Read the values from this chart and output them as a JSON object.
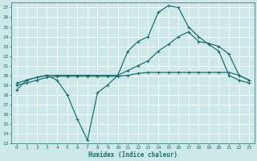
{
  "xlabel": "Humidex (Indice chaleur)",
  "background_color": "#cde8e8",
  "grid_color": "#ffffff",
  "line_color": "#1a7070",
  "xlim": [
    -0.5,
    23.5
  ],
  "ylim": [
    13,
    27.5
  ],
  "xticks": [
    0,
    1,
    2,
    3,
    4,
    5,
    6,
    7,
    8,
    9,
    10,
    11,
    12,
    13,
    14,
    15,
    16,
    17,
    18,
    19,
    20,
    21,
    22,
    23
  ],
  "yticks": [
    13,
    14,
    15,
    16,
    17,
    18,
    19,
    20,
    21,
    22,
    23,
    24,
    25,
    26,
    27
  ],
  "line1_x": [
    0,
    1,
    2,
    3,
    4,
    5,
    6,
    7,
    8,
    9,
    10,
    11,
    12,
    13,
    14,
    15,
    16,
    17,
    18,
    19,
    20,
    21,
    22,
    23
  ],
  "line1_y": [
    18.5,
    19.5,
    19.8,
    20.0,
    19.5,
    18.0,
    15.5,
    13.3,
    18.2,
    19.0,
    20.0,
    22.5,
    23.5,
    24.0,
    26.5,
    27.2,
    27.0,
    25.0,
    24.0,
    23.2,
    22.5,
    20.0,
    19.5,
    19.2
  ],
  "line2_x": [
    0,
    1,
    2,
    3,
    4,
    5,
    6,
    7,
    8,
    9,
    10,
    11,
    12,
    13,
    14,
    15,
    16,
    17,
    18,
    19,
    20,
    21,
    22,
    23
  ],
  "line2_y": [
    19.2,
    19.5,
    19.8,
    20.0,
    20.0,
    20.0,
    20.0,
    20.0,
    20.0,
    20.0,
    20.0,
    20.5,
    21.0,
    21.5,
    22.5,
    23.2,
    24.0,
    24.5,
    23.5,
    23.3,
    23.0,
    22.2,
    20.0,
    19.5
  ],
  "line3_x": [
    0,
    1,
    2,
    3,
    4,
    5,
    6,
    7,
    8,
    9,
    10,
    11,
    12,
    13,
    14,
    15,
    16,
    17,
    18,
    19,
    20,
    21,
    22,
    23
  ],
  "line3_y": [
    19.0,
    19.2,
    19.5,
    19.8,
    19.9,
    19.9,
    19.9,
    19.9,
    19.9,
    19.9,
    19.9,
    20.0,
    20.2,
    20.3,
    20.3,
    20.3,
    20.3,
    20.3,
    20.3,
    20.3,
    20.3,
    20.3,
    20.0,
    19.5
  ],
  "marker": "+",
  "markersize": 3,
  "linewidth": 0.9
}
